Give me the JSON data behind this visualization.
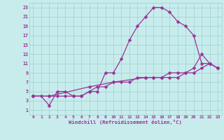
{
  "xlabel": "Windchill (Refroidissement éolien,°C)",
  "bg_color": "#c8ecec",
  "grid_color": "#a8d8d8",
  "line_color": "#993399",
  "xlim": [
    -0.5,
    23.5
  ],
  "ylim": [
    0,
    24
  ],
  "xticks": [
    0,
    1,
    2,
    3,
    4,
    5,
    6,
    7,
    8,
    9,
    10,
    11,
    12,
    13,
    14,
    15,
    16,
    17,
    18,
    19,
    20,
    21,
    22,
    23
  ],
  "yticks": [
    1,
    3,
    5,
    7,
    9,
    11,
    13,
    15,
    17,
    19,
    21,
    23
  ],
  "line1_x": [
    0,
    1,
    2,
    3,
    4,
    5,
    6,
    7,
    8,
    9,
    10,
    11,
    12,
    13,
    14,
    15,
    16,
    17,
    18,
    19,
    20,
    21,
    22,
    23
  ],
  "line1_y": [
    4,
    4,
    2,
    5,
    5,
    4,
    4,
    5,
    5,
    9,
    9,
    12,
    16,
    19,
    21,
    23,
    23,
    22,
    20,
    19,
    17,
    11,
    11,
    10
  ],
  "line2_x": [
    0,
    2,
    3,
    4,
    5,
    6,
    7,
    8,
    9,
    10,
    11,
    12,
    13,
    14,
    15,
    16,
    17,
    18,
    19,
    20,
    21,
    22,
    23
  ],
  "line2_y": [
    4,
    4,
    4,
    4,
    4,
    4,
    5,
    6,
    6,
    7,
    7,
    7,
    8,
    8,
    8,
    8,
    8,
    8,
    9,
    9,
    10,
    11,
    10
  ],
  "line3_x": [
    0,
    2,
    7,
    10,
    14,
    15,
    16,
    17,
    18,
    19,
    20,
    21,
    22,
    23
  ],
  "line3_y": [
    4,
    4,
    6,
    7,
    8,
    8,
    8,
    9,
    9,
    9,
    10,
    13,
    11,
    10
  ]
}
